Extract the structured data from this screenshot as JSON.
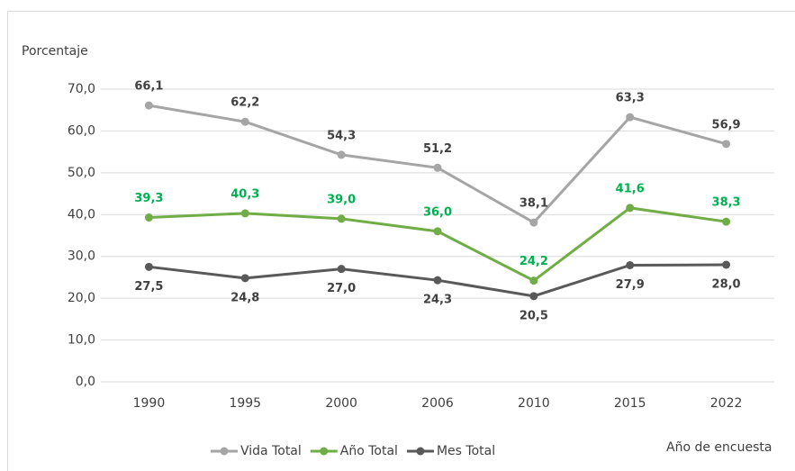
{
  "chart_data": {
    "type": "line",
    "y_label": "Porcentaje",
    "x_label": "Año de encuesta",
    "categories": [
      "1990",
      "1995",
      "2000",
      "2006",
      "2010",
      "2015",
      "2022"
    ],
    "series": [
      {
        "name": "Vida Total",
        "color": "#a5a5a5",
        "label_color": "#404040",
        "values": [
          66.1,
          62.2,
          54.3,
          51.2,
          38.1,
          63.3,
          56.9
        ],
        "value_labels": [
          "66,1",
          "62,2",
          "54,3",
          "51,2",
          "38,1",
          "63,3",
          "56,9"
        ]
      },
      {
        "name": "Año Total",
        "color": "#70ad47",
        "label_color": "#00b050",
        "values": [
          39.3,
          40.3,
          39.0,
          36.0,
          24.2,
          41.6,
          38.3
        ],
        "value_labels": [
          "39,3",
          "40,3",
          "39,0",
          "36,0",
          "24,2",
          "41,6",
          "38,3"
        ]
      },
      {
        "name": "Mes Total",
        "color": "#595959",
        "label_color": "#404040",
        "values": [
          27.5,
          24.8,
          27.0,
          24.3,
          20.5,
          27.9,
          28.0
        ],
        "value_labels": [
          "27,5",
          "24,8",
          "27,0",
          "24,3",
          "20,5",
          "27,9",
          "28,0"
        ]
      }
    ],
    "ylim": [
      0,
      70
    ],
    "yticks": [
      {
        "value": 0,
        "label": "0,0"
      },
      {
        "value": 10,
        "label": "10,0"
      },
      {
        "value": 20,
        "label": "20,0"
      },
      {
        "value": 30,
        "label": "30,0"
      },
      {
        "value": 40,
        "label": "40,0"
      },
      {
        "value": 50,
        "label": "50,0"
      },
      {
        "value": 60,
        "label": "60,0"
      },
      {
        "value": 70,
        "label": "70,0"
      }
    ],
    "grid": true,
    "legend": "bottom"
  }
}
